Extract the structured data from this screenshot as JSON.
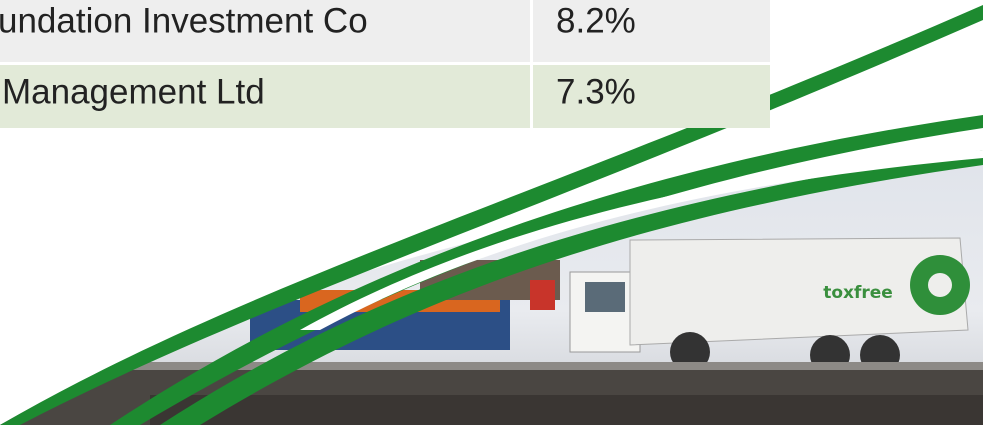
{
  "table": {
    "rows": [
      [
        "undation Investment Co",
        "8.2%"
      ],
      [
        "Management Ltd",
        "7.3%"
      ]
    ]
  },
  "photo": {
    "logo": "toxfree"
  }
}
